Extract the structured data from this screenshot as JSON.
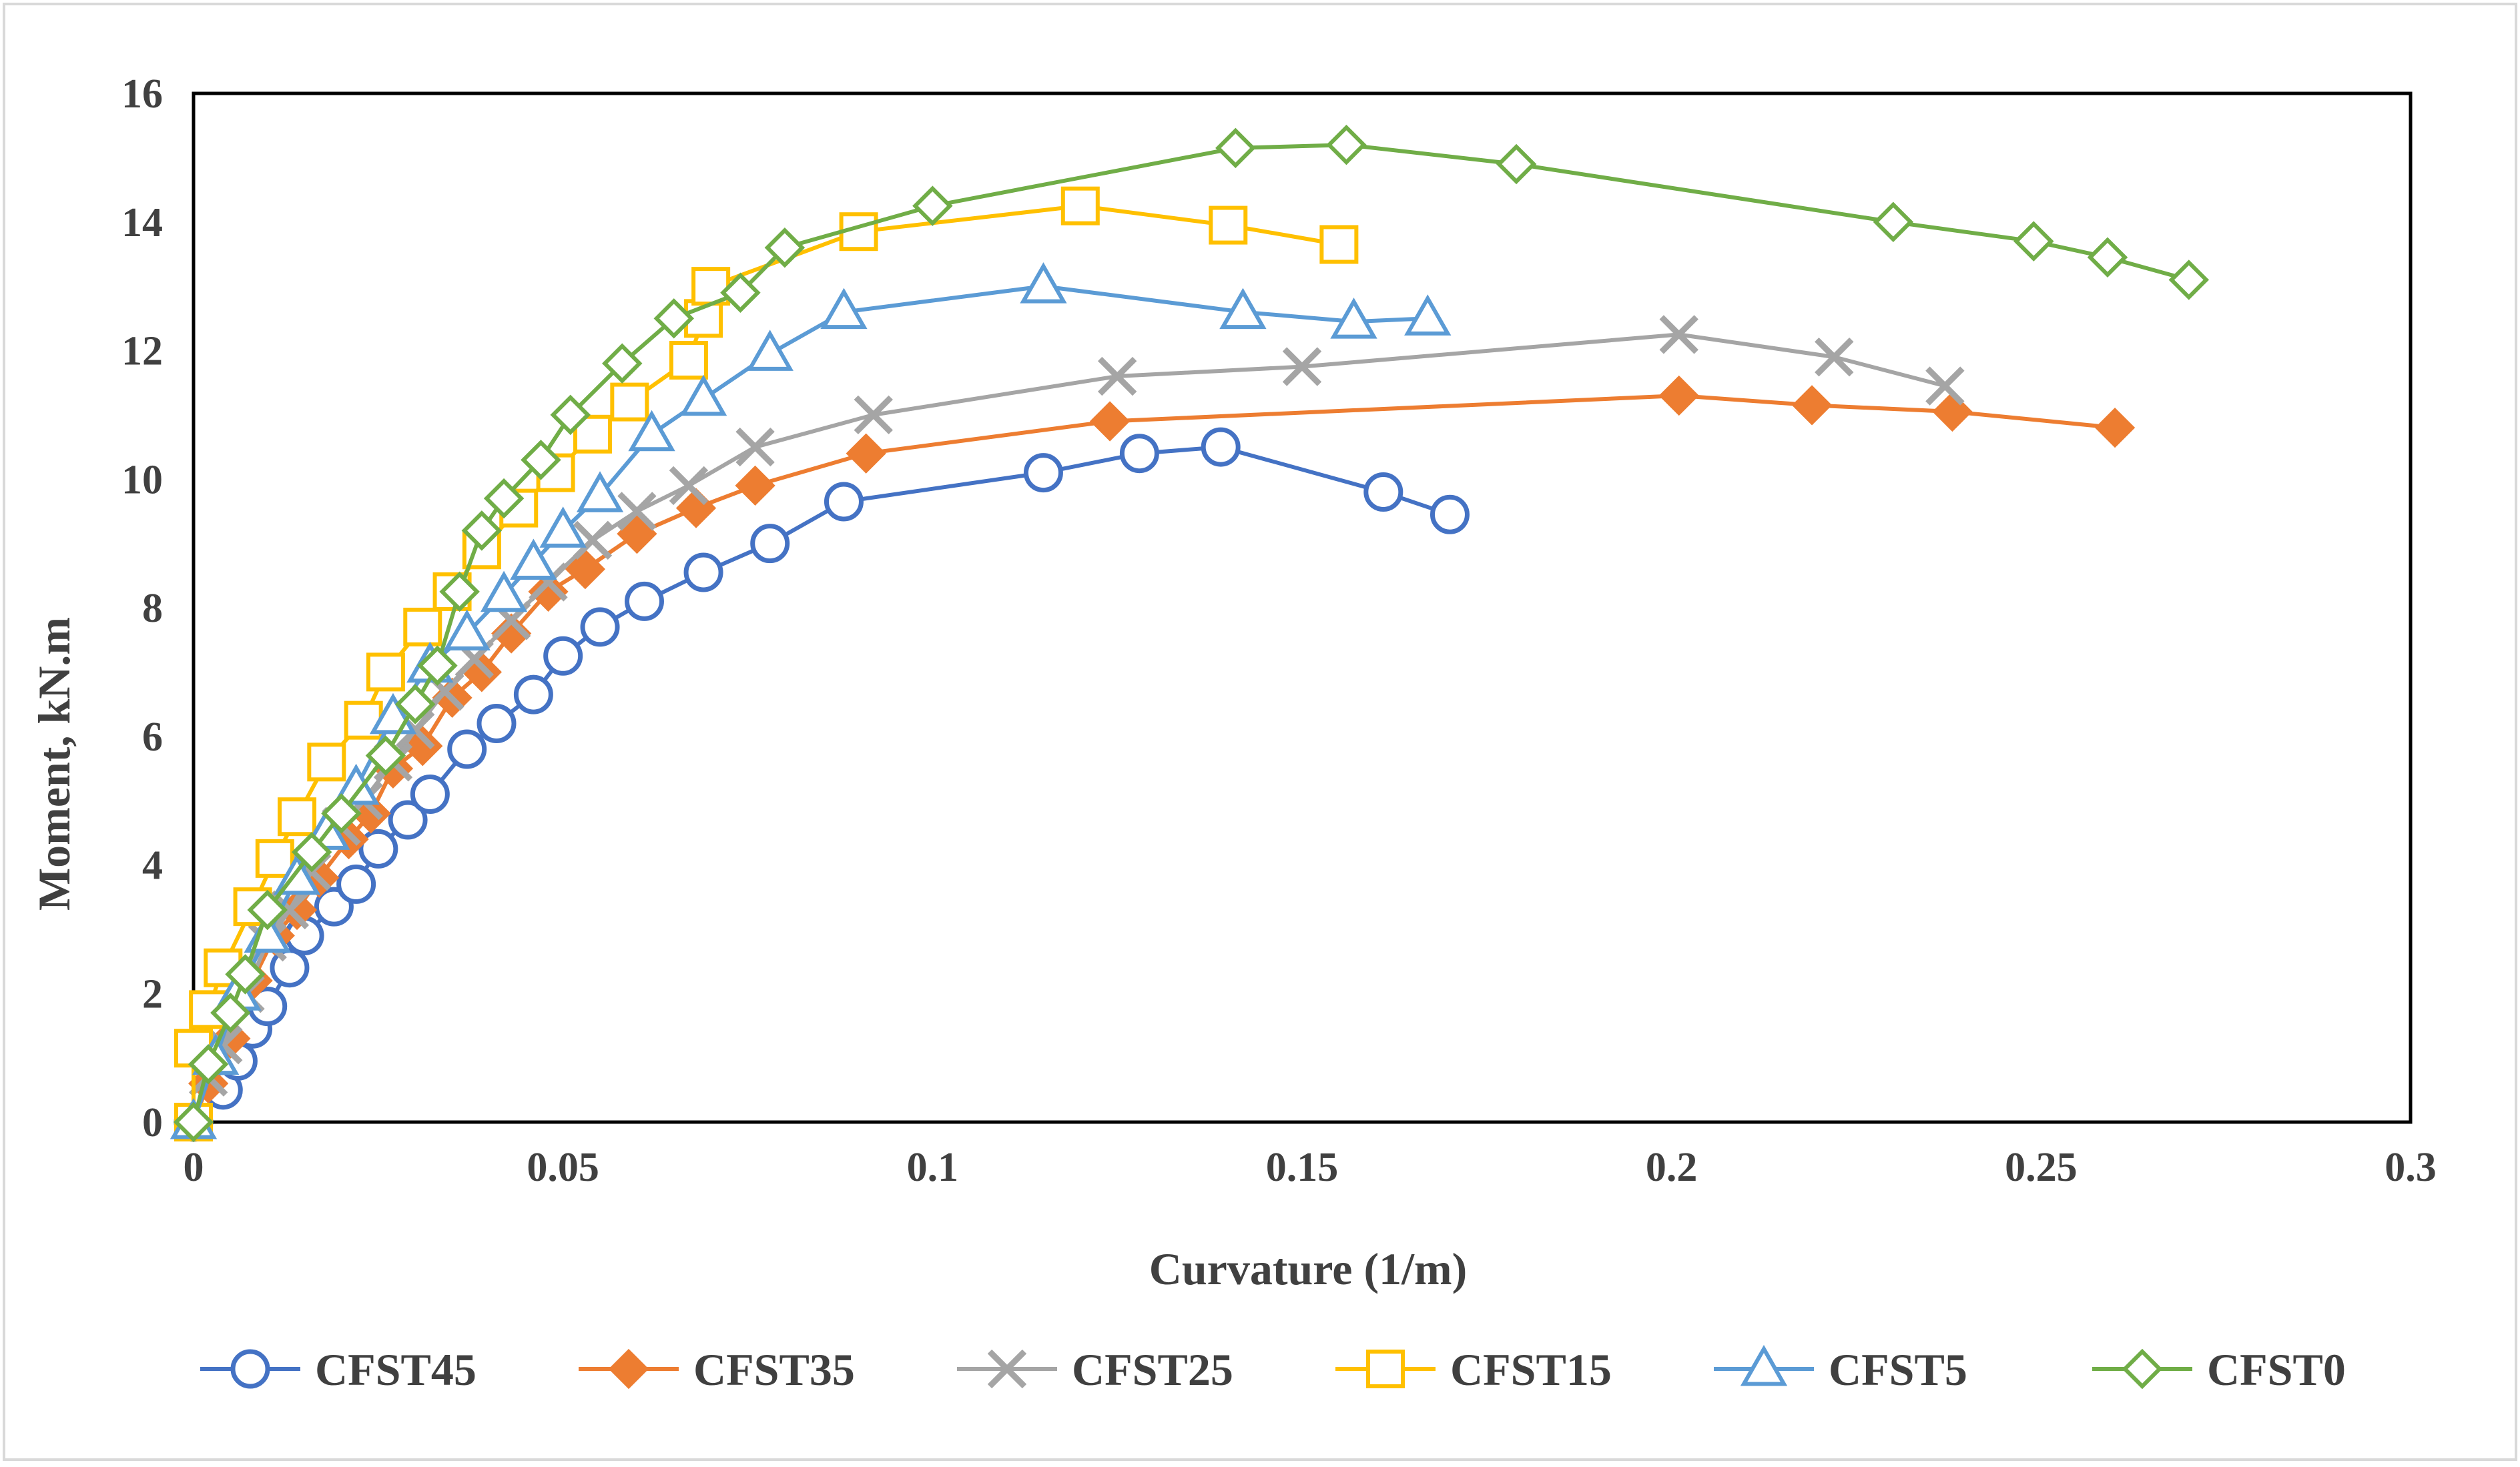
{
  "chart_data": {
    "type": "line",
    "xlabel": "Curvature (1/m)",
    "ylabel": "Moment, kN.m",
    "xlim": [
      0,
      0.3
    ],
    "ylim": [
      0,
      16
    ],
    "xticks": [
      0,
      0.05,
      0.1,
      0.15,
      0.2,
      0.25,
      0.3
    ],
    "xtick_labels": [
      "0",
      "0.05",
      "0.1",
      "0.15",
      "0.2",
      "0.25",
      "0.3"
    ],
    "yticks": [
      0,
      2,
      4,
      6,
      8,
      10,
      12,
      14,
      16
    ],
    "ytick_labels": [
      "0",
      "2",
      "4",
      "6",
      "8",
      "10",
      "12",
      "14",
      "16"
    ],
    "grid": false,
    "legend_position": "bottom",
    "series": [
      {
        "name": "CFST45",
        "color": "#4472C4",
        "marker": "circle",
        "points": [
          [
            0,
            0
          ],
          [
            0.004,
            0.5
          ],
          [
            0.006,
            0.95
          ],
          [
            0.008,
            1.45
          ],
          [
            0.01,
            1.8
          ],
          [
            0.013,
            2.4
          ],
          [
            0.015,
            2.9
          ],
          [
            0.019,
            3.35
          ],
          [
            0.022,
            3.7
          ],
          [
            0.025,
            4.25
          ],
          [
            0.029,
            4.7
          ],
          [
            0.032,
            5.1
          ],
          [
            0.037,
            5.8
          ],
          [
            0.041,
            6.2
          ],
          [
            0.046,
            6.65
          ],
          [
            0.05,
            7.25
          ],
          [
            0.055,
            7.7
          ],
          [
            0.061,
            8.1
          ],
          [
            0.069,
            8.55
          ],
          [
            0.078,
            9.0
          ],
          [
            0.088,
            9.65
          ],
          [
            0.115,
            10.1
          ],
          [
            0.128,
            10.4
          ],
          [
            0.139,
            10.5
          ],
          [
            0.161,
            9.8
          ],
          [
            0.17,
            9.45
          ]
        ]
      },
      {
        "name": "CFST35",
        "color": "#ED7D31",
        "marker": "diamond",
        "points": [
          [
            0,
            0
          ],
          [
            0.002,
            0.6
          ],
          [
            0.005,
            1.3
          ],
          [
            0.008,
            2.2
          ],
          [
            0.011,
            2.9
          ],
          [
            0.014,
            3.3
          ],
          [
            0.017,
            3.8
          ],
          [
            0.021,
            4.4
          ],
          [
            0.024,
            4.8
          ],
          [
            0.027,
            5.5
          ],
          [
            0.031,
            5.85
          ],
          [
            0.035,
            6.6
          ],
          [
            0.039,
            7.0
          ],
          [
            0.043,
            7.6
          ],
          [
            0.048,
            8.25
          ],
          [
            0.053,
            8.6
          ],
          [
            0.06,
            9.15
          ],
          [
            0.068,
            9.55
          ],
          [
            0.076,
            9.9
          ],
          [
            0.091,
            10.4
          ],
          [
            0.124,
            10.9
          ],
          [
            0.201,
            11.3
          ],
          [
            0.219,
            11.15
          ],
          [
            0.238,
            11.05
          ],
          [
            0.26,
            10.8
          ]
        ]
      },
      {
        "name": "CFST25",
        "color": "#A5A5A5",
        "marker": "x",
        "points": [
          [
            0,
            0
          ],
          [
            0.002,
            0.7
          ],
          [
            0.004,
            1.2
          ],
          [
            0.007,
            2.0
          ],
          [
            0.01,
            2.8
          ],
          [
            0.013,
            3.3
          ],
          [
            0.016,
            3.9
          ],
          [
            0.02,
            4.6
          ],
          [
            0.023,
            5.0
          ],
          [
            0.027,
            5.6
          ],
          [
            0.03,
            6.1
          ],
          [
            0.034,
            6.7
          ],
          [
            0.038,
            7.2
          ],
          [
            0.043,
            7.8
          ],
          [
            0.048,
            8.4
          ],
          [
            0.054,
            9.05
          ],
          [
            0.06,
            9.5
          ],
          [
            0.067,
            9.9
          ],
          [
            0.076,
            10.5
          ],
          [
            0.092,
            11.0
          ],
          [
            0.125,
            11.6
          ],
          [
            0.15,
            11.75
          ],
          [
            0.201,
            12.25
          ],
          [
            0.222,
            11.9
          ],
          [
            0.237,
            11.45
          ]
        ]
      },
      {
        "name": "CFST15",
        "color": "#FFC000",
        "marker": "square",
        "points": [
          [
            0,
            0
          ],
          [
            0,
            1.15
          ],
          [
            0.002,
            1.75
          ],
          [
            0.004,
            2.4
          ],
          [
            0.008,
            3.35
          ],
          [
            0.011,
            4.1
          ],
          [
            0.014,
            4.75
          ],
          [
            0.018,
            5.6
          ],
          [
            0.023,
            6.25
          ],
          [
            0.026,
            7.0
          ],
          [
            0.031,
            7.7
          ],
          [
            0.035,
            8.25
          ],
          [
            0.039,
            8.9
          ],
          [
            0.044,
            9.55
          ],
          [
            0.049,
            10.1
          ],
          [
            0.054,
            10.7
          ],
          [
            0.059,
            11.2
          ],
          [
            0.067,
            11.85
          ],
          [
            0.069,
            12.5
          ],
          [
            0.07,
            13.0
          ],
          [
            0.09,
            13.85
          ],
          [
            0.12,
            14.25
          ],
          [
            0.14,
            13.95
          ],
          [
            0.155,
            13.65
          ]
        ]
      },
      {
        "name": "CFST5",
        "color": "#5B9BD5",
        "marker": "triangle",
        "points": [
          [
            0,
            0
          ],
          [
            0.003,
            1.0
          ],
          [
            0.006,
            2.0
          ],
          [
            0.01,
            2.9
          ],
          [
            0.014,
            3.8
          ],
          [
            0.018,
            4.5
          ],
          [
            0.022,
            5.2
          ],
          [
            0.027,
            6.3
          ],
          [
            0.032,
            7.1
          ],
          [
            0.037,
            7.6
          ],
          [
            0.042,
            8.2
          ],
          [
            0.046,
            8.7
          ],
          [
            0.05,
            9.2
          ],
          [
            0.055,
            9.75
          ],
          [
            0.062,
            10.7
          ],
          [
            0.069,
            11.25
          ],
          [
            0.078,
            11.95
          ],
          [
            0.088,
            12.6
          ],
          [
            0.115,
            13.0
          ],
          [
            0.142,
            12.6
          ],
          [
            0.157,
            12.45
          ],
          [
            0.167,
            12.5
          ]
        ]
      },
      {
        "name": "CFST0",
        "color": "#70AD47",
        "marker": "diamond-open",
        "points": [
          [
            0,
            0
          ],
          [
            0.002,
            0.9
          ],
          [
            0.005,
            1.7
          ],
          [
            0.007,
            2.3
          ],
          [
            0.01,
            3.3
          ],
          [
            0.016,
            4.2
          ],
          [
            0.02,
            4.8
          ],
          [
            0.026,
            5.7
          ],
          [
            0.03,
            6.5
          ],
          [
            0.033,
            7.1
          ],
          [
            0.036,
            8.25
          ],
          [
            0.039,
            9.2
          ],
          [
            0.042,
            9.7
          ],
          [
            0.047,
            10.3
          ],
          [
            0.051,
            11.0
          ],
          [
            0.058,
            11.8
          ],
          [
            0.065,
            12.5
          ],
          [
            0.074,
            12.9
          ],
          [
            0.08,
            13.6
          ],
          [
            0.1,
            14.25
          ],
          [
            0.141,
            15.15
          ],
          [
            0.156,
            15.2
          ],
          [
            0.179,
            14.9
          ],
          [
            0.23,
            14.0
          ],
          [
            0.249,
            13.7
          ],
          [
            0.259,
            13.45
          ],
          [
            0.27,
            13.1
          ]
        ]
      }
    ]
  }
}
